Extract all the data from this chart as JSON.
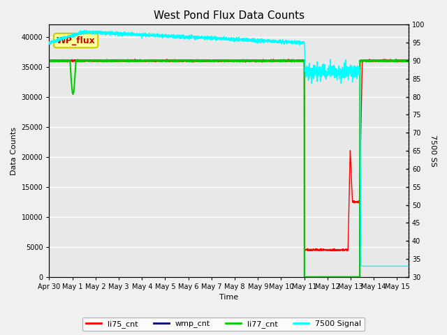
{
  "title": "West Pond Flux Data Counts",
  "xlabel": "Time",
  "ylabel_left": "Data Counts",
  "ylabel_right": "7500 SS",
  "ylim_left": [
    0,
    42000
  ],
  "ylim_right": [
    30,
    100
  ],
  "yticks_left": [
    0,
    5000,
    10000,
    15000,
    20000,
    25000,
    30000,
    35000,
    40000
  ],
  "yticks_right": [
    30,
    35,
    40,
    45,
    50,
    55,
    60,
    65,
    70,
    75,
    80,
    85,
    90,
    95,
    100
  ],
  "xlim": [
    0,
    15.5
  ],
  "xtick_days": [
    0,
    1,
    2,
    3,
    4,
    5,
    6,
    7,
    8,
    9,
    10,
    11,
    12,
    13,
    14,
    15
  ],
  "xtick_labels": [
    "Apr 30",
    "May 1",
    "May 2",
    "May 3",
    "May 4",
    "May 5",
    "May 6",
    "May 7",
    "May 8",
    "May 9",
    "May 10",
    "May 11",
    "May 12",
    "May 13",
    "May 14",
    "May 15"
  ],
  "bg_color": "#e8e8e8",
  "plot_bg": "#e8e8e8",
  "grid_color": "#ffffff",
  "fig_bg": "#f0f0f0",
  "li75_color": "red",
  "wmp_color": "navy",
  "li77_color": "#00cc00",
  "sig_color": "cyan",
  "annotation_text": "WP_flux",
  "annotation_fg": "#cc0000",
  "annotation_bg": "#ffff99",
  "annotation_border": "#cccc00",
  "title_fontsize": 11,
  "tick_fontsize": 7,
  "label_fontsize": 8,
  "legend_entries": [
    "li75_cnt",
    "wmp_cnt",
    "li77_cnt",
    "7500 Signal"
  ]
}
